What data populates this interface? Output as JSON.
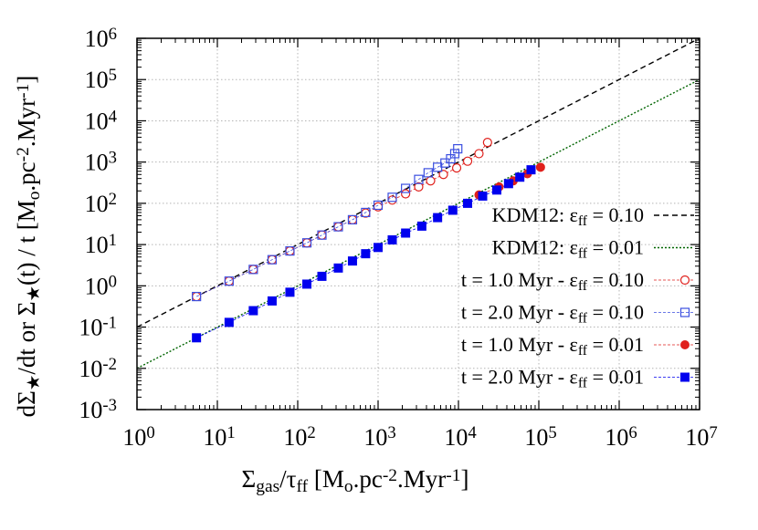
{
  "chart_data": {
    "type": "scatter",
    "xscale": "log",
    "yscale": "log",
    "xlim": [
      1,
      10000000
    ],
    "ylim": [
      0.001,
      1000000
    ],
    "grid": true,
    "legend_position": "bottom-right",
    "xlabel": {
      "parts": [
        {
          "t": "Σ"
        },
        {
          "t": "gas",
          "s": "sub"
        },
        {
          "t": "/τ"
        },
        {
          "t": "ff",
          "s": "sub"
        },
        {
          "t": " [M"
        },
        {
          "t": "o",
          "s": "sub"
        },
        {
          "t": ".pc"
        },
        {
          "t": "-2",
          "s": "sup"
        },
        {
          "t": ".Myr"
        },
        {
          "t": "-1",
          "s": "sup"
        },
        {
          "t": "]"
        }
      ]
    },
    "ylabel": {
      "parts": [
        {
          "t": "dΣ"
        },
        {
          "t": "★",
          "s": "sub"
        },
        {
          "t": "/dt or Σ"
        },
        {
          "t": "★",
          "s": "sub"
        },
        {
          "t": "(t) / t [M"
        },
        {
          "t": "o",
          "s": "sub"
        },
        {
          "t": ".pc"
        },
        {
          "t": "-2",
          "s": "sup"
        },
        {
          "t": ".Myr"
        },
        {
          "t": "-1",
          "s": "sup"
        },
        {
          "t": "]"
        }
      ]
    },
    "x_ticks": [
      {
        "v": 1,
        "base": "10",
        "exp": "0"
      },
      {
        "v": 10,
        "base": "10",
        "exp": "1"
      },
      {
        "v": 100,
        "base": "10",
        "exp": "2"
      },
      {
        "v": 1000,
        "base": "10",
        "exp": "3"
      },
      {
        "v": 10000,
        "base": "10",
        "exp": "4"
      },
      {
        "v": 100000,
        "base": "10",
        "exp": "5"
      },
      {
        "v": 1000000,
        "base": "10",
        "exp": "6"
      },
      {
        "v": 10000000,
        "base": "10",
        "exp": "7"
      }
    ],
    "y_ticks": [
      {
        "v": 0.001,
        "base": "10",
        "exp": "-3"
      },
      {
        "v": 0.01,
        "base": "10",
        "exp": "-2"
      },
      {
        "v": 0.1,
        "base": "10",
        "exp": "-1"
      },
      {
        "v": 1,
        "base": "10",
        "exp": "0"
      },
      {
        "v": 10,
        "base": "10",
        "exp": "1"
      },
      {
        "v": 100,
        "base": "10",
        "exp": "2"
      },
      {
        "v": 1000,
        "base": "10",
        "exp": "3"
      },
      {
        "v": 10000,
        "base": "10",
        "exp": "4"
      },
      {
        "v": 100000,
        "base": "10",
        "exp": "5"
      },
      {
        "v": 1000000,
        "base": "10",
        "exp": "6"
      }
    ],
    "series": [
      {
        "label_parts": [
          {
            "t": "KDM12: ε"
          },
          {
            "t": "ff",
            "s": "sub"
          },
          {
            "t": " = 0.10"
          }
        ],
        "kind": "line",
        "color": "#000000",
        "dash": "6,4",
        "x": [
          1,
          10000000
        ],
        "y": [
          0.1,
          1000000
        ]
      },
      {
        "label_parts": [
          {
            "t": "KDM12: ε"
          },
          {
            "t": "ff",
            "s": "sub"
          },
          {
            "t": " = 0.01"
          }
        ],
        "kind": "line",
        "color": "#006400",
        "dash": "2,2",
        "x": [
          1,
          10000000
        ],
        "y": [
          0.01,
          100000
        ]
      },
      {
        "label_parts": [
          {
            "t": "t = 1.0 Myr - ε"
          },
          {
            "t": "ff",
            "s": "sub"
          },
          {
            "t": " = 0.10"
          }
        ],
        "kind": "points",
        "marker": "circle-open",
        "color": "#e0201c",
        "x": [
          5.5,
          14,
          28,
          48,
          80,
          130,
          200,
          320,
          480,
          700,
          1000,
          1500,
          2200,
          3200,
          4500,
          6500,
          9500,
          13000,
          18000,
          23000
        ],
        "y": [
          0.55,
          1.3,
          2.5,
          4.3,
          7,
          11,
          17,
          27,
          40,
          58,
          82,
          120,
          170,
          250,
          350,
          500,
          720,
          1050,
          1600,
          3000
        ]
      },
      {
        "label_parts": [
          {
            "t": "t = 2.0 Myr - ε"
          },
          {
            "t": "ff",
            "s": "sub"
          },
          {
            "t": " = 0.10"
          }
        ],
        "kind": "points",
        "marker": "square-open",
        "color": "#3b4fe0",
        "x": [
          5.5,
          14,
          28,
          48,
          80,
          130,
          200,
          320,
          480,
          700,
          1000,
          1500,
          2200,
          3200,
          4200,
          5500,
          6800,
          8000,
          9000,
          9800
        ],
        "y": [
          0.55,
          1.3,
          2.5,
          4.3,
          7,
          11,
          17,
          27,
          40,
          60,
          90,
          140,
          230,
          380,
          550,
          750,
          950,
          1200,
          1600,
          2100
        ]
      },
      {
        "label_parts": [
          {
            "t": "t = 1.0 Myr - ε"
          },
          {
            "t": "ff",
            "s": "sub"
          },
          {
            "t": " = 0.01"
          }
        ],
        "kind": "points",
        "marker": "circle-filled",
        "color": "#e0201c",
        "x": [
          18000,
          32000,
          48000,
          72000,
          105000
        ],
        "y": [
          160,
          250,
          350,
          520,
          750
        ]
      },
      {
        "label_parts": [
          {
            "t": "t = 2.0 Myr - ε"
          },
          {
            "t": "ff",
            "s": "sub"
          },
          {
            "t": " = 0.01"
          }
        ],
        "kind": "points",
        "marker": "square-filled",
        "color": "#0000ee",
        "x": [
          5.5,
          14,
          28,
          48,
          80,
          130,
          200,
          320,
          480,
          700,
          1000,
          1500,
          2200,
          3500,
          5500,
          8500,
          13000,
          20000,
          30000,
          42000,
          58000,
          80000
        ],
        "y": [
          0.055,
          0.13,
          0.25,
          0.43,
          0.7,
          1.1,
          1.7,
          2.7,
          4,
          6,
          8.5,
          13,
          19,
          28,
          45,
          68,
          100,
          150,
          210,
          300,
          430,
          650
        ]
      }
    ]
  }
}
